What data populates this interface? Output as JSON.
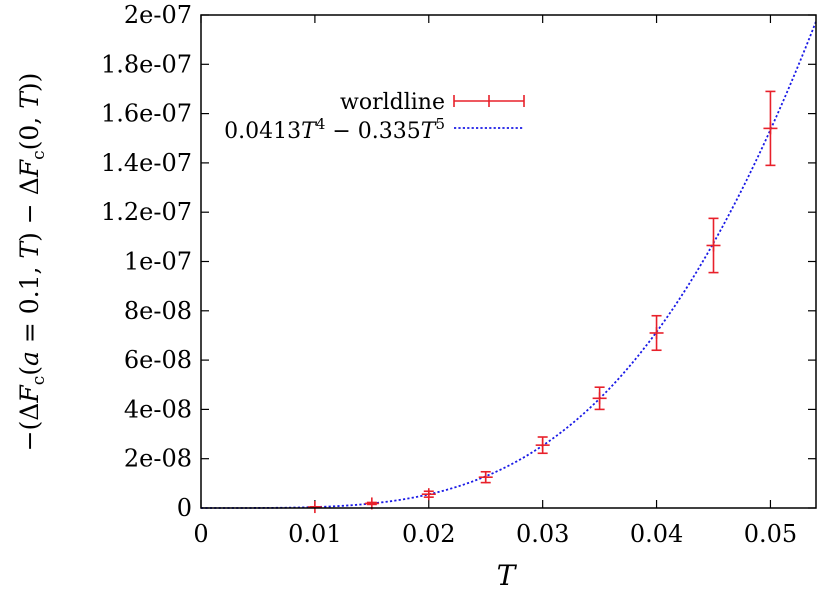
{
  "chart_data": {
    "type": "scatter",
    "xlabel": "T",
    "ylabel": "−(ΔF_c(a = 0.1, T) − ΔF_c(0, T))",
    "xlim": [
      0,
      0.054
    ],
    "ylim": [
      0,
      2e-07
    ],
    "x_ticks": [
      {
        "value": 0,
        "label": "0"
      },
      {
        "value": 0.01,
        "label": "0.01"
      },
      {
        "value": 0.02,
        "label": "0.02"
      },
      {
        "value": 0.03,
        "label": "0.03"
      },
      {
        "value": 0.04,
        "label": "0.04"
      },
      {
        "value": 0.05,
        "label": "0.05"
      }
    ],
    "y_ticks": [
      {
        "value": 0,
        "label": "0"
      },
      {
        "value": 2e-08,
        "label": "2e-08"
      },
      {
        "value": 4e-08,
        "label": "4e-08"
      },
      {
        "value": 6e-08,
        "label": "6e-08"
      },
      {
        "value": 8e-08,
        "label": "8e-08"
      },
      {
        "value": 1e-07,
        "label": "1e-07"
      },
      {
        "value": 1.2e-07,
        "label": "1.2e-07"
      },
      {
        "value": 1.4e-07,
        "label": "1.4e-07"
      },
      {
        "value": 1.6e-07,
        "label": "1.6e-07"
      },
      {
        "value": 1.8e-07,
        "label": "1.8e-07"
      },
      {
        "value": 2e-07,
        "label": "2e-07"
      }
    ],
    "series": [
      {
        "name": "worldline",
        "kind": "errorbar",
        "color": "#e8202a",
        "points": [
          {
            "x": 0.01,
            "y": 3.8e-10,
            "err": 1e-10
          },
          {
            "x": 0.015,
            "y": 1.85e-09,
            "err": 4e-10
          },
          {
            "x": 0.02,
            "y": 5.6e-09,
            "err": 1.2e-09
          },
          {
            "x": 0.025,
            "y": 1.25e-08,
            "err": 2.2e-09
          },
          {
            "x": 0.03,
            "y": 2.55e-08,
            "err": 3.3e-09
          },
          {
            "x": 0.035,
            "y": 4.45e-08,
            "err": 4.5e-09
          },
          {
            "x": 0.04,
            "y": 7.1e-08,
            "err": 7e-09
          },
          {
            "x": 0.045,
            "y": 1.065e-07,
            "err": 1.1e-08
          },
          {
            "x": 0.05,
            "y": 1.54e-07,
            "err": 1.5e-08
          }
        ]
      },
      {
        "name": "0.0413T^4 − 0.335T^5",
        "kind": "curve",
        "color": "#1a1ae6",
        "coefficients": {
          "c4": 0.0413,
          "c5": -0.335
        }
      }
    ],
    "legend": {
      "placement": "top-left",
      "entries": [
        {
          "text": "worldline",
          "series": "worldline"
        },
        {
          "text": "0.0413T^4 − 0.335T^5",
          "series": "fit"
        }
      ]
    },
    "grid": false
  }
}
